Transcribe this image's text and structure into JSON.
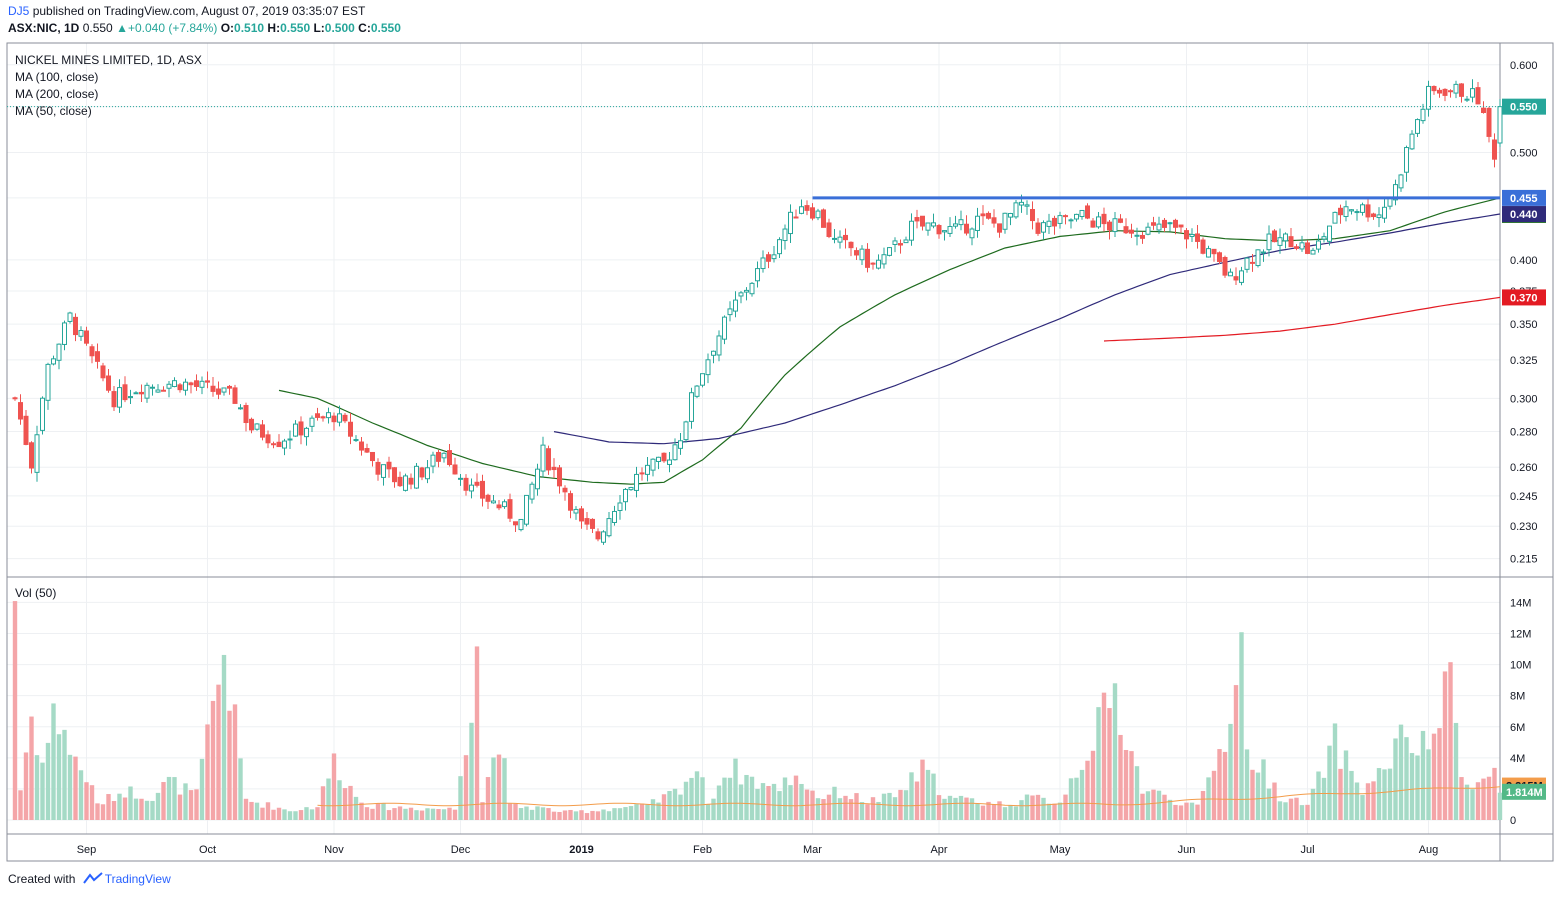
{
  "header": {
    "user": "DJ5",
    "published": "published on TradingView.com, August 07, 2019 03:35:07 EST",
    "symbol": "ASX:NIC, 1D",
    "last": "0.550",
    "change_arrow": "▲",
    "change": "+0.040 (+7.84%)",
    "o_label": "O:",
    "o_value": "0.510",
    "h_label": "H:",
    "h_value": "0.550",
    "l_label": "L:",
    "l_value": "0.500",
    "c_label": "C:",
    "c_value": "0.550"
  },
  "legend": {
    "title": "NICKEL MINES LIMITED, 1D, ASX",
    "ma100": "MA (100, close)",
    "ma200": "MA (200, close)",
    "ma50": "MA (50, close)",
    "vol": "Vol (50)"
  },
  "footer": {
    "created": "Created with",
    "brand": "TradingView"
  },
  "colors": {
    "up": "#26a69a",
    "up_fill": "#ffffff",
    "down": "#ef5350",
    "ma50": "#1e6b1e",
    "ma100": "#2f2a7a",
    "ma200": "#e31b23",
    "resistance": "#3a6fd8",
    "vol_up": "#a5dac6",
    "vol_down": "#f4a5a8",
    "vol_ma": "#f39c4a"
  },
  "chart_data": {
    "type": "candlestick",
    "interval": "1D",
    "x_tick_labels": [
      "Sep",
      "Oct",
      "Nov",
      "Dec",
      "2019",
      "Feb",
      "Mar",
      "Apr",
      "May",
      "Jun",
      "Jul",
      "Aug"
    ],
    "price_axis": {
      "ticks": [
        "0.600",
        "0.550",
        "0.500",
        "0.455",
        "0.400",
        "0.375",
        "0.350",
        "0.325",
        "0.300",
        "0.280",
        "0.260",
        "0.245",
        "0.230",
        "0.215"
      ],
      "scale": "log",
      "range": [
        0.21,
        0.62
      ]
    },
    "volume_axis": {
      "ticks": [
        "14M",
        "12M",
        "10M",
        "8M",
        "6M",
        "4M",
        "2M",
        "0"
      ],
      "range": [
        0,
        14.8
      ]
    },
    "price_badges": [
      {
        "value": "0.550",
        "series": "last"
      },
      {
        "value": "0.455",
        "series": "resistance"
      },
      {
        "value": "0.455",
        "series": "ma50"
      },
      {
        "value": "0.440",
        "series": "ma100"
      },
      {
        "value": "0.370",
        "series": "ma200"
      }
    ],
    "volume_badges": [
      {
        "value": "2.215M",
        "series": "vol_ma"
      },
      {
        "value": "1.814M",
        "series": "volume"
      }
    ],
    "resistance_level": 0.455,
    "last_price": 0.55,
    "price_waypoints": [
      [
        0,
        0.3
      ],
      [
        3,
        0.262
      ],
      [
        6,
        0.32
      ],
      [
        10,
        0.355
      ],
      [
        14,
        0.325
      ],
      [
        18,
        0.3
      ],
      [
        23,
        0.308
      ],
      [
        30,
        0.31
      ],
      [
        36,
        0.305
      ],
      [
        40,
        0.3
      ],
      [
        43,
        0.282
      ],
      [
        48,
        0.275
      ],
      [
        54,
        0.285
      ],
      [
        58,
        0.29
      ],
      [
        62,
        0.275
      ],
      [
        66,
        0.26
      ],
      [
        70,
        0.252
      ],
      [
        74,
        0.258
      ],
      [
        78,
        0.268
      ],
      [
        83,
        0.248
      ],
      [
        88,
        0.24
      ],
      [
        92,
        0.232
      ],
      [
        96,
        0.268
      ],
      [
        100,
        0.248
      ],
      [
        103,
        0.23
      ],
      [
        106,
        0.225
      ],
      [
        110,
        0.245
      ],
      [
        114,
        0.258
      ],
      [
        118,
        0.262
      ],
      [
        121,
        0.278
      ],
      [
        124,
        0.31
      ],
      [
        127,
        0.335
      ],
      [
        131,
        0.365
      ],
      [
        135,
        0.39
      ],
      [
        138,
        0.41
      ],
      [
        141,
        0.435
      ],
      [
        143,
        0.45
      ],
      [
        146,
        0.44
      ],
      [
        149,
        0.415
      ],
      [
        152,
        0.41
      ],
      [
        156,
        0.395
      ],
      [
        159,
        0.405
      ],
      [
        163,
        0.428
      ],
      [
        167,
        0.43
      ],
      [
        171,
        0.425
      ],
      [
        175,
        0.435
      ],
      [
        179,
        0.43
      ],
      [
        183,
        0.448
      ],
      [
        186,
        0.428
      ],
      [
        190,
        0.432
      ],
      [
        194,
        0.438
      ],
      [
        198,
        0.43
      ],
      [
        202,
        0.428
      ],
      [
        206,
        0.425
      ],
      [
        210,
        0.428
      ],
      [
        214,
        0.42
      ],
      [
        218,
        0.4
      ],
      [
        221,
        0.385
      ],
      [
        224,
        0.4
      ],
      [
        228,
        0.415
      ],
      [
        232,
        0.418
      ],
      [
        236,
        0.405
      ],
      [
        239,
        0.43
      ],
      [
        242,
        0.448
      ],
      [
        245,
        0.445
      ],
      [
        248,
        0.44
      ],
      [
        251,
        0.465
      ],
      [
        254,
        0.52
      ],
      [
        257,
        0.565
      ],
      [
        260,
        0.57
      ],
      [
        263,
        0.568
      ],
      [
        266,
        0.56
      ],
      [
        268,
        0.515
      ],
      [
        269,
        0.5
      ],
      [
        270,
        0.55
      ]
    ],
    "ma50": {
      "start_index": 48,
      "waypoints": [
        [
          48,
          0.305
        ],
        [
          55,
          0.3
        ],
        [
          65,
          0.285
        ],
        [
          75,
          0.272
        ],
        [
          85,
          0.262
        ],
        [
          95,
          0.255
        ],
        [
          105,
          0.252
        ],
        [
          112,
          0.251
        ],
        [
          118,
          0.252
        ],
        [
          125,
          0.264
        ],
        [
          132,
          0.282
        ],
        [
          140,
          0.315
        ],
        [
          150,
          0.348
        ],
        [
          160,
          0.372
        ],
        [
          170,
          0.392
        ],
        [
          180,
          0.41
        ],
        [
          190,
          0.42
        ],
        [
          200,
          0.425
        ],
        [
          210,
          0.424
        ],
        [
          220,
          0.418
        ],
        [
          230,
          0.416
        ],
        [
          240,
          0.418
        ],
        [
          250,
          0.425
        ],
        [
          260,
          0.442
        ],
        [
          270,
          0.455
        ]
      ]
    },
    "ma100": {
      "start_index": 98,
      "waypoints": [
        [
          98,
          0.28
        ],
        [
          108,
          0.274
        ],
        [
          118,
          0.273
        ],
        [
          128,
          0.276
        ],
        [
          140,
          0.285
        ],
        [
          150,
          0.296
        ],
        [
          160,
          0.308
        ],
        [
          170,
          0.322
        ],
        [
          180,
          0.338
        ],
        [
          190,
          0.354
        ],
        [
          200,
          0.372
        ],
        [
          210,
          0.388
        ],
        [
          220,
          0.398
        ],
        [
          230,
          0.408
        ],
        [
          240,
          0.415
        ],
        [
          250,
          0.423
        ],
        [
          260,
          0.432
        ],
        [
          270,
          0.44
        ]
      ]
    },
    "ma200": {
      "start_index": 198,
      "waypoints": [
        [
          198,
          0.338
        ],
        [
          210,
          0.34
        ],
        [
          220,
          0.342
        ],
        [
          230,
          0.345
        ],
        [
          240,
          0.35
        ],
        [
          250,
          0.357
        ],
        [
          260,
          0.364
        ],
        [
          270,
          0.37
        ]
      ]
    },
    "volume_waypoints_M": [
      [
        0,
        14.5
      ],
      [
        1,
        2.0
      ],
      [
        3,
        6.7
      ],
      [
        5,
        3.6
      ],
      [
        7,
        6.6
      ],
      [
        9,
        6.1
      ],
      [
        10,
        4.3
      ],
      [
        13,
        2.8
      ],
      [
        15,
        1.0
      ],
      [
        20,
        1.9
      ],
      [
        25,
        1.5
      ],
      [
        28,
        2.5
      ],
      [
        33,
        1.6
      ],
      [
        38,
        10.8
      ],
      [
        42,
        1.3
      ],
      [
        50,
        0.6
      ],
      [
        55,
        0.9
      ],
      [
        58,
        3.8
      ],
      [
        62,
        1.5
      ],
      [
        65,
        0.9
      ],
      [
        70,
        0.8
      ],
      [
        80,
        0.7
      ],
      [
        83,
        7.9
      ],
      [
        84,
        12.4
      ],
      [
        85,
        1.2
      ],
      [
        88,
        5.6
      ],
      [
        90,
        0.9
      ],
      [
        95,
        0.8
      ],
      [
        100,
        0.5
      ],
      [
        105,
        0.6
      ],
      [
        110,
        0.8
      ],
      [
        115,
        0.9
      ],
      [
        120,
        1.8
      ],
      [
        124,
        3.3
      ],
      [
        126,
        1.2
      ],
      [
        130,
        3.4
      ],
      [
        134,
        2.6
      ],
      [
        138,
        2.0
      ],
      [
        142,
        2.9
      ],
      [
        146,
        1.5
      ],
      [
        150,
        1.8
      ],
      [
        155,
        1.2
      ],
      [
        160,
        1.5
      ],
      [
        165,
        3.2
      ],
      [
        170,
        1.4
      ],
      [
        175,
        1.2
      ],
      [
        180,
        1.0
      ],
      [
        185,
        1.4
      ],
      [
        190,
        1.2
      ],
      [
        200,
        8.0
      ],
      [
        205,
        2.0
      ],
      [
        210,
        1.4
      ],
      [
        215,
        0.8
      ],
      [
        220,
        5.3
      ],
      [
        223,
        11.3
      ],
      [
        224,
        4.1
      ],
      [
        226,
        3.7
      ],
      [
        230,
        1.6
      ],
      [
        235,
        0.9
      ],
      [
        240,
        5.0
      ],
      [
        245,
        1.9
      ],
      [
        248,
        2.9
      ],
      [
        252,
        5.1
      ],
      [
        256,
        4.6
      ],
      [
        258,
        5.5
      ],
      [
        261,
        8.9
      ],
      [
        263,
        3.0
      ],
      [
        266,
        2.4
      ],
      [
        268,
        2.6
      ],
      [
        269,
        3.2
      ],
      [
        270,
        1.8
      ]
    ]
  }
}
